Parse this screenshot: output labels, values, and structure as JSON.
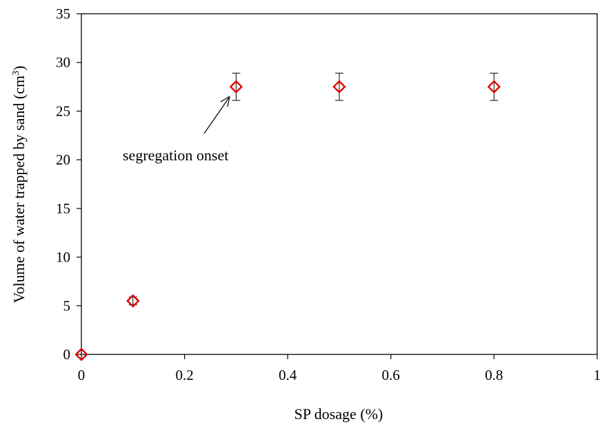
{
  "chart_data": {
    "type": "scatter",
    "xlabel": "SP dosage (%)",
    "ylabel_main": "Volume of water trapped by sand (cm",
    "ylabel_sup": "3",
    "ylabel_close": ")",
    "xlim": [
      0,
      1
    ],
    "ylim": [
      0,
      35
    ],
    "x_ticks": [
      0,
      0.2,
      0.4,
      0.6,
      0.8,
      1
    ],
    "x_tick_labels": [
      "0",
      "0.2",
      "0.4",
      "0.6",
      "0.8",
      "1"
    ],
    "y_ticks": [
      0,
      5,
      10,
      15,
      20,
      25,
      30,
      35
    ],
    "y_tick_labels": [
      "0",
      "5",
      "10",
      "15",
      "20",
      "25",
      "30",
      "35"
    ],
    "grid": false,
    "marker": "diamond",
    "marker_color": "#e00000",
    "points": [
      {
        "x": 0,
        "y": 0,
        "err": 0
      },
      {
        "x": 0.1,
        "y": 5.5,
        "err": 0.4
      },
      {
        "x": 0.3,
        "y": 27.5,
        "err": 1.4
      },
      {
        "x": 0.5,
        "y": 27.5,
        "err": 1.4
      },
      {
        "x": 0.8,
        "y": 27.5,
        "err": 1.4
      }
    ],
    "annotation": {
      "text": "segregation onset",
      "points_to_x": 0.3,
      "points_to_y": 27.5
    }
  }
}
